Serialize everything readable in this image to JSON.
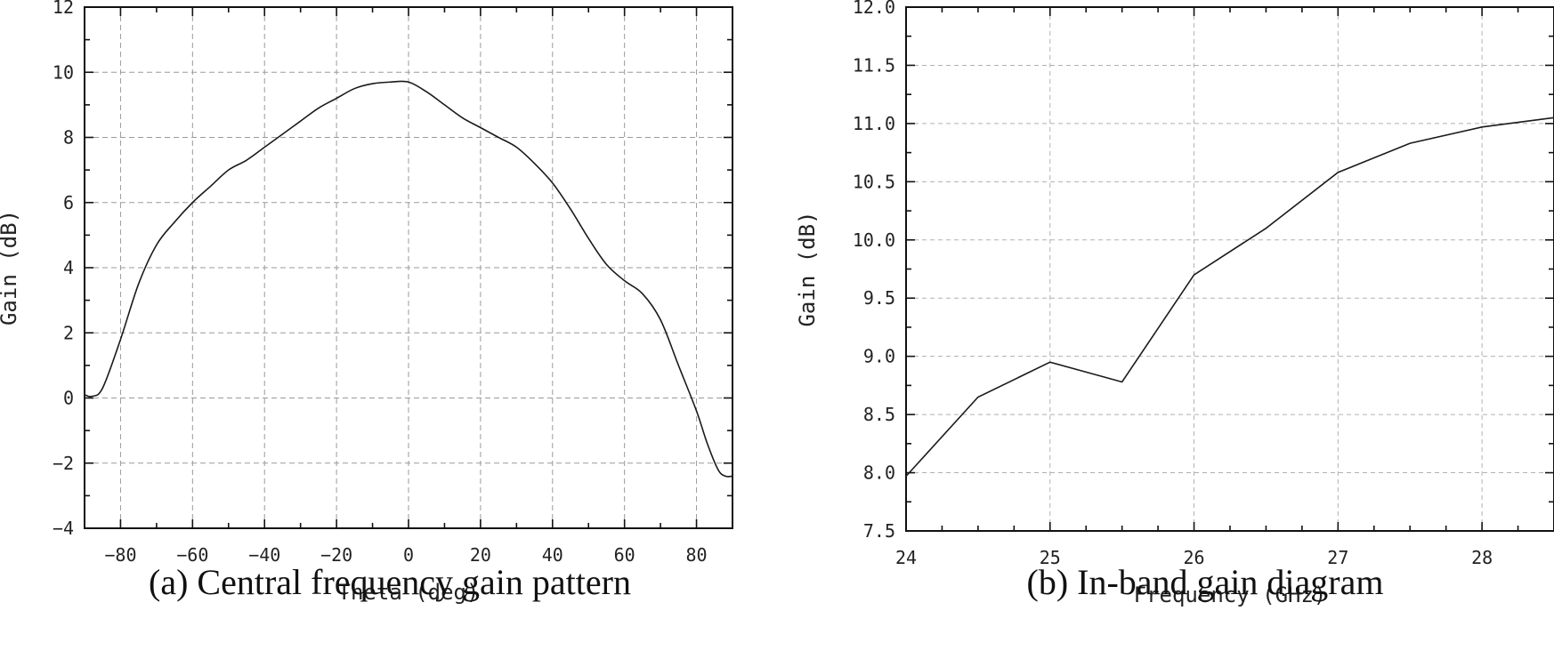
{
  "figure": {
    "captions": {
      "a": "(a) Central frequency gain pattern",
      "b": "(b) In-band gain diagram"
    }
  },
  "chart_data": [
    {
      "id": "a",
      "type": "line",
      "title": "(a) Central frequency gain pattern",
      "xlabel": "Theta (deg)",
      "ylabel": "Gain (dB)",
      "xlim": [
        -90,
        90
      ],
      "ylim": [
        -4,
        12
      ],
      "xticks": [
        -80,
        -60,
        -40,
        -20,
        0,
        20,
        40,
        60,
        80
      ],
      "yticks": [
        -4,
        -2,
        0,
        2,
        4,
        6,
        8,
        10,
        12
      ],
      "xtick_labels": [
        "−80",
        "−60",
        "−40",
        "−20",
        "0",
        "20",
        "40",
        "60",
        "80"
      ],
      "ytick_labels": [
        "−4",
        "−2",
        "0",
        "2",
        "4",
        "6",
        "8",
        "10",
        "12"
      ],
      "grid": true,
      "series": [
        {
          "name": "Gain",
          "x": [
            -90,
            -88,
            -85,
            -80,
            -75,
            -70,
            -65,
            -60,
            -55,
            -50,
            -45,
            -40,
            -35,
            -30,
            -25,
            -20,
            -15,
            -10,
            -5,
            0,
            5,
            10,
            15,
            20,
            25,
            30,
            35,
            40,
            45,
            50,
            55,
            60,
            65,
            70,
            75,
            80,
            83,
            86,
            88,
            90
          ],
          "y": [
            0.1,
            0.05,
            0.3,
            1.8,
            3.5,
            4.7,
            5.4,
            6.0,
            6.5,
            7.0,
            7.3,
            7.7,
            8.1,
            8.5,
            8.9,
            9.2,
            9.5,
            9.65,
            9.7,
            9.7,
            9.4,
            9.0,
            8.6,
            8.3,
            8.0,
            7.7,
            7.2,
            6.6,
            5.8,
            4.9,
            4.1,
            3.6,
            3.2,
            2.4,
            1.0,
            -0.4,
            -1.4,
            -2.2,
            -2.4,
            -2.4
          ]
        }
      ]
    },
    {
      "id": "b",
      "type": "line",
      "title": "(b) In-band gain diagram",
      "xlabel": "Frequency (GHz)",
      "ylabel": "Gain (dB)",
      "xlim": [
        24,
        28.5
      ],
      "ylim": [
        7.5,
        12.0
      ],
      "xticks": [
        24,
        25,
        26,
        27,
        28
      ],
      "yticks": [
        7.5,
        8.0,
        8.5,
        9.0,
        9.5,
        10.0,
        10.5,
        11.0,
        11.5,
        12.0
      ],
      "xtick_labels": [
        "24",
        "25",
        "26",
        "27",
        "28"
      ],
      "ytick_labels": [
        "7.5",
        "8.0",
        "8.5",
        "9.0",
        "9.5",
        "10.0",
        "10.5",
        "11.0",
        "11.5",
        "12.0"
      ],
      "grid": true,
      "series": [
        {
          "name": "Gain",
          "x": [
            24,
            24.5,
            25,
            25.5,
            26,
            26.5,
            27,
            27.5,
            28,
            28.5
          ],
          "y": [
            7.97,
            8.65,
            8.95,
            8.78,
            9.7,
            10.1,
            10.58,
            10.83,
            10.97,
            11.05
          ]
        }
      ]
    }
  ]
}
